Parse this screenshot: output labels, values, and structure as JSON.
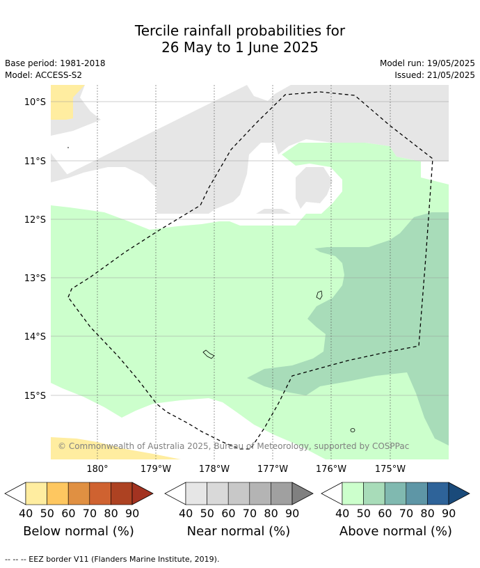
{
  "title_line1": "Tercile rainfall probabilities for",
  "title_line2": "26 May to 1 June 2025",
  "base_period": "Base period: 1981-2018",
  "model": "Model: ACCESS-S2",
  "model_run": "Model run: 19/05/2025",
  "issued": "Issued: 21/05/2025",
  "lat_labels": [
    "10°S",
    "11°S",
    "12°S",
    "13°S",
    "14°S",
    "15°S"
  ],
  "lon_labels": [
    "180°",
    "179°W",
    "178°W",
    "177°W",
    "176°W",
    "175°W"
  ],
  "copyright": "© Commonwealth of Australia 2025, Bureau of Meteorology, supported by COSPPac",
  "colorbar_ticks": [
    "40",
    "50",
    "60",
    "70",
    "80",
    "90"
  ],
  "legend": {
    "below": {
      "label": "Below normal (%)",
      "colors": [
        "#ffeda0",
        "#fec760",
        "#e09042",
        "#cf6230",
        "#ad4222",
        "#a33321"
      ]
    },
    "near": {
      "label": "Near normal (%)",
      "colors": [
        "#e6e6e6",
        "#d9d9d9",
        "#c8c8c8",
        "#b4b4b4",
        "#a0a0a0",
        "#808080"
      ]
    },
    "above": {
      "label": "Above normal (%)",
      "colors": [
        "#ccffcc",
        "#a8dcb9",
        "#80b9b0",
        "#5e96a6",
        "#2e6399",
        "#1a4a7a"
      ]
    }
  },
  "footer": "--  --  -- EEZ border V11 (Flanders Marine Institute, 2019)."
}
